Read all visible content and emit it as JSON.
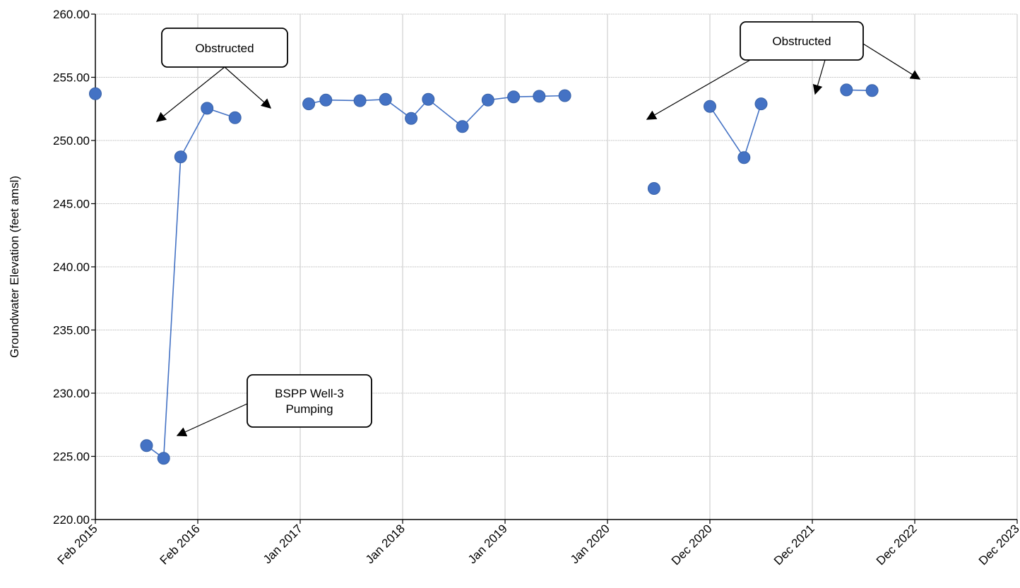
{
  "chart_data": {
    "type": "line",
    "title": "",
    "ylabel": "Groundwater Elevation (feet amsl)",
    "xlabel": "",
    "ylim": [
      220,
      260
    ],
    "yticks": [
      "220.00",
      "225.00",
      "230.00",
      "235.00",
      "240.00",
      "245.00",
      "250.00",
      "255.00",
      "260.00"
    ],
    "xticks": [
      "Feb 2015",
      "Feb 2016",
      "Jan 2017",
      "Jan 2018",
      "Jan 2019",
      "Jan 2020",
      "Dec 2020",
      "Dec 2021",
      "Dec 2022",
      "Dec 2023"
    ],
    "grid": true,
    "series_color": "#4472C4",
    "segments": [
      [
        {
          "x": "2015-02",
          "y": 253.7
        }
      ],
      [
        {
          "x": "2015-08",
          "y": 225.85
        },
        {
          "x": "2015-10",
          "y": 224.85
        },
        {
          "x": "2015-12",
          "y": 248.7
        },
        {
          "x": "2016-03",
          "y": 252.55
        },
        {
          "x": "2016-06",
          "y": 251.8
        }
      ],
      [
        {
          "x": "2017-02",
          "y": 252.9
        },
        {
          "x": "2017-04",
          "y": 253.2
        },
        {
          "x": "2017-08",
          "y": 253.15
        },
        {
          "x": "2017-11",
          "y": 253.25
        },
        {
          "x": "2018-02",
          "y": 251.75
        },
        {
          "x": "2018-04",
          "y": 253.25
        },
        {
          "x": "2018-08",
          "y": 251.1
        },
        {
          "x": "2018-11",
          "y": 253.2
        },
        {
          "x": "2019-02",
          "y": 253.45
        },
        {
          "x": "2019-05",
          "y": 253.5
        },
        {
          "x": "2019-08",
          "y": 253.55
        }
      ],
      [
        {
          "x": "2020-06",
          "y": 246.2
        }
      ],
      [
        {
          "x": "2020-12",
          "y": 252.7
        },
        {
          "x": "2021-04",
          "y": 248.65
        },
        {
          "x": "2021-06",
          "y": 252.9
        }
      ],
      [
        {
          "x": "2022-04",
          "y": 254.0
        },
        {
          "x": "2022-07",
          "y": 253.95
        }
      ]
    ],
    "annotations": [
      {
        "text": "Obstructed"
      },
      {
        "text": "Obstructed"
      },
      {
        "text": "BSPP Well-3 Pumping"
      }
    ]
  }
}
